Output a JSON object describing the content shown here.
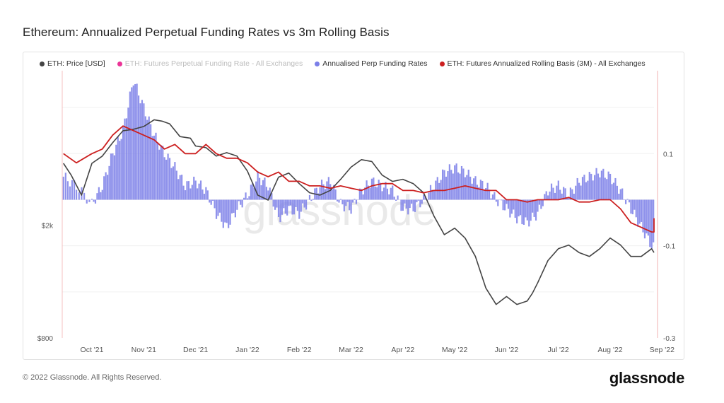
{
  "title": "Ethereum: Annualized Perpetual Funding Rates vs 3m Rolling Basis",
  "legend": [
    {
      "label": "ETH: Price [USD]",
      "color": "#444444",
      "faded": false
    },
    {
      "label": "ETH: Futures Perpetual Funding Rate - All Exchanges",
      "color": "#e91e8c",
      "faded": true
    },
    {
      "label": "Annualised Perp Funding Rates",
      "color": "#7b7fe8",
      "faded": false
    },
    {
      "label": "ETH: Futures Annualized Rolling Basis (3M) - All Exchanges",
      "color": "#cc1f1f",
      "faded": false
    }
  ],
  "footer": "© 2022 Glassnode. All Rights Reserved.",
  "brand": "glassnode",
  "watermark": "glassnode",
  "chart_data": {
    "type": "line",
    "title": "Ethereum: Annualized Perpetual Funding Rates vs 3m Rolling Basis",
    "x_labels": [
      "Oct '21",
      "Nov '21",
      "Dec '21",
      "Jan '22",
      "Feb '22",
      "Mar '22",
      "Apr '22",
      "May '22",
      "Jun '22",
      "Jul '22",
      "Aug '22",
      "Sep '22"
    ],
    "x_range": [
      0,
      11.3
    ],
    "left_axis": {
      "scale": "log",
      "ticks": [
        {
          "label": "$2k",
          "value": 2000
        },
        {
          "label": "$800",
          "value": 800
        }
      ],
      "range": [
        800,
        7000
      ]
    },
    "right_axis": {
      "ticks": [
        {
          "label": "0.1",
          "value": 0.1
        },
        {
          "label": "-0.1",
          "value": -0.1
        },
        {
          "label": "-0.3",
          "value": -0.3
        }
      ],
      "range": [
        -0.3,
        0.28
      ]
    },
    "series": [
      {
        "name": "ETH: Price [USD]",
        "axis": "left",
        "x": [
          -0.55,
          -0.4,
          -0.2,
          0,
          0.2,
          0.4,
          0.6,
          0.8,
          1,
          1.2,
          1.35,
          1.5,
          1.7,
          1.9,
          2,
          2.2,
          2.4,
          2.6,
          2.8,
          3,
          3.2,
          3.4,
          3.6,
          3.8,
          4,
          4.2,
          4.4,
          4.6,
          4.8,
          5,
          5.2,
          5.4,
          5.6,
          5.8,
          6,
          6.2,
          6.4,
          6.6,
          6.8,
          7,
          7.2,
          7.4,
          7.6,
          7.8,
          8,
          8.2,
          8.4,
          8.5,
          8.6,
          8.8,
          9,
          9.2,
          9.4,
          9.6,
          9.8,
          10,
          10.2,
          10.4,
          10.6,
          10.8,
          11,
          11.2
        ],
        "y": [
          3300,
          3000,
          2550,
          3300,
          3500,
          3900,
          4300,
          4350,
          4450,
          4700,
          4650,
          4550,
          4100,
          4050,
          3800,
          3750,
          3500,
          3600,
          3500,
          3100,
          2550,
          2450,
          2950,
          3050,
          2800,
          2600,
          2550,
          2650,
          2900,
          3200,
          3400,
          3350,
          3000,
          2850,
          2900,
          2800,
          2600,
          2150,
          1850,
          1950,
          1800,
          1550,
          1200,
          1050,
          1120,
          1050,
          1080,
          1150,
          1250,
          1500,
          1650,
          1700,
          1600,
          1550,
          1650,
          1800,
          1700,
          1550,
          1550,
          1650,
          1600,
          1600
        ]
      },
      {
        "name": "ETH: Futures Annualized Rolling Basis (3M) - All Exchanges",
        "axis": "right",
        "x": [
          -0.55,
          -0.3,
          0,
          0.2,
          0.4,
          0.6,
          0.8,
          1,
          1.2,
          1.4,
          1.6,
          1.8,
          2,
          2.2,
          2.4,
          2.6,
          2.8,
          3,
          3.2,
          3.4,
          3.6,
          3.8,
          4,
          4.2,
          4.4,
          4.6,
          4.8,
          5,
          5.2,
          5.4,
          5.6,
          5.8,
          6,
          6.2,
          6.4,
          6.6,
          6.8,
          7,
          7.2,
          7.4,
          7.6,
          7.8,
          8,
          8.2,
          8.4,
          8.6,
          8.8,
          9,
          9.2,
          9.4,
          9.6,
          9.8,
          10,
          10.2,
          10.4,
          10.6,
          10.8,
          11,
          11.1,
          11.2
        ],
        "y": [
          0.1,
          0.08,
          0.1,
          0.11,
          0.14,
          0.16,
          0.15,
          0.14,
          0.13,
          0.11,
          0.12,
          0.1,
          0.1,
          0.12,
          0.1,
          0.09,
          0.09,
          0.08,
          0.06,
          0.05,
          0.06,
          0.04,
          0.04,
          0.03,
          0.03,
          0.025,
          0.03,
          0.025,
          0.02,
          0.03,
          0.035,
          0.035,
          0.02,
          0.02,
          0.015,
          0.02,
          0.02,
          0.025,
          0.03,
          0.025,
          0.02,
          0.02,
          0.0,
          0.0,
          -0.005,
          0.0,
          0.0,
          0.0,
          0.005,
          -0.005,
          -0.005,
          0.0,
          0.0,
          -0.02,
          -0.05,
          -0.06,
          -0.07,
          -0.07,
          -0.06,
          -0.04
        ]
      }
    ],
    "bars": {
      "name": "Annualised Perp Funding Rates",
      "axis": "right",
      "x": [
        -0.55,
        -0.3,
        0,
        0.2,
        0.4,
        0.6,
        0.8,
        1,
        1.2,
        1.4,
        1.6,
        1.8,
        2,
        2.2,
        2.4,
        2.6,
        2.8,
        3,
        3.2,
        3.4,
        3.6,
        3.8,
        4,
        4.2,
        4.4,
        4.6,
        4.8,
        5,
        5.2,
        5.4,
        5.6,
        5.8,
        6,
        6.2,
        6.4,
        6.6,
        6.8,
        7,
        7.2,
        7.4,
        7.6,
        7.8,
        8,
        8.2,
        8.4,
        8.6,
        8.8,
        9,
        9.2,
        9.4,
        9.6,
        9.8,
        10,
        10.2,
        10.4,
        10.6,
        10.8,
        11,
        11.2
      ],
      "y": [
        0.05,
        0.03,
        -0.01,
        0.03,
        0.1,
        0.15,
        0.26,
        0.2,
        0.14,
        0.1,
        0.07,
        0.03,
        0.04,
        0.02,
        -0.03,
        -0.06,
        -0.02,
        0.01,
        0.05,
        0.03,
        -0.04,
        -0.02,
        -0.03,
        0.0,
        0.03,
        0.04,
        -0.01,
        -0.02,
        0.02,
        0.04,
        0.03,
        0.02,
        -0.02,
        -0.02,
        0.0,
        0.03,
        0.06,
        0.07,
        0.06,
        0.04,
        0.03,
        0.0,
        -0.02,
        -0.04,
        -0.05,
        -0.03,
        0.02,
        0.03,
        0.01,
        0.04,
        0.05,
        0.06,
        0.05,
        0.02,
        -0.02,
        -0.06,
        -0.1,
        -0.12,
        -0.18
      ]
    },
    "ylabel": "",
    "xlabel": ""
  }
}
